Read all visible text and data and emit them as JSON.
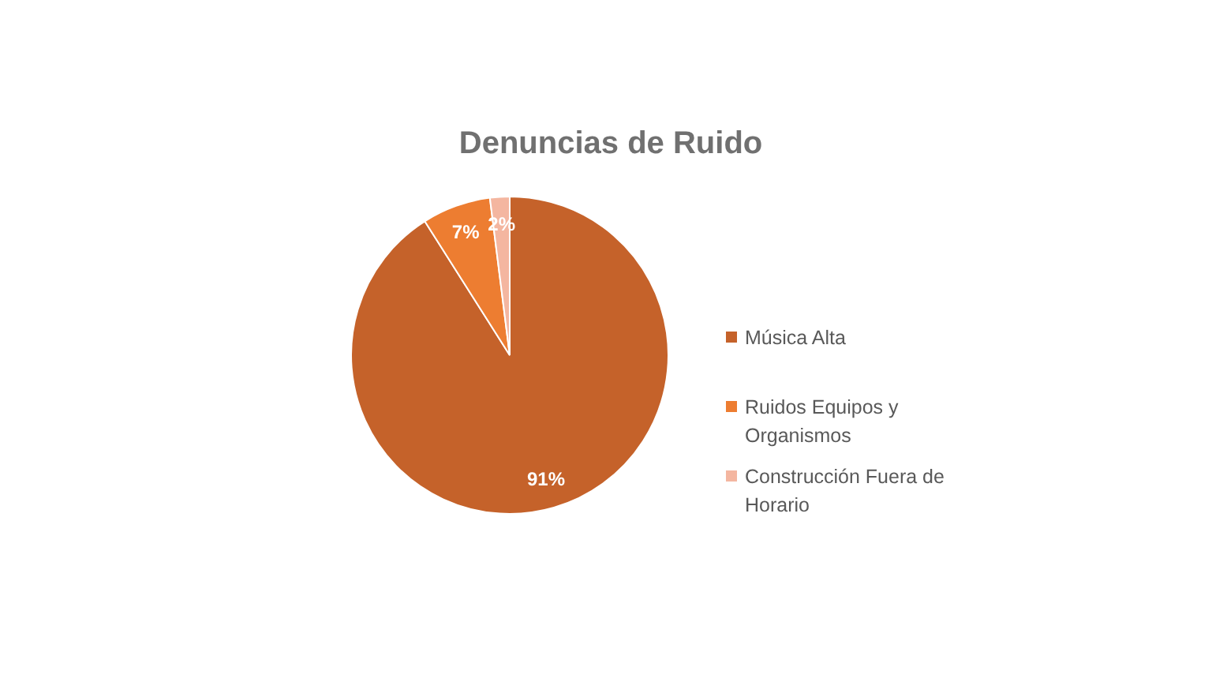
{
  "chart_data": {
    "type": "pie",
    "title": "Denuncias de Ruido",
    "categories": [
      "Música Alta",
      "Ruidos Equipos y Organismos",
      "Construcción Fuera de Horario"
    ],
    "values": [
      91,
      7,
      2
    ],
    "colors": [
      "#c5622a",
      "#ed7d31",
      "#f4b6a0"
    ],
    "value_labels": [
      "91%",
      "7%",
      "2%"
    ],
    "legend": "right"
  }
}
